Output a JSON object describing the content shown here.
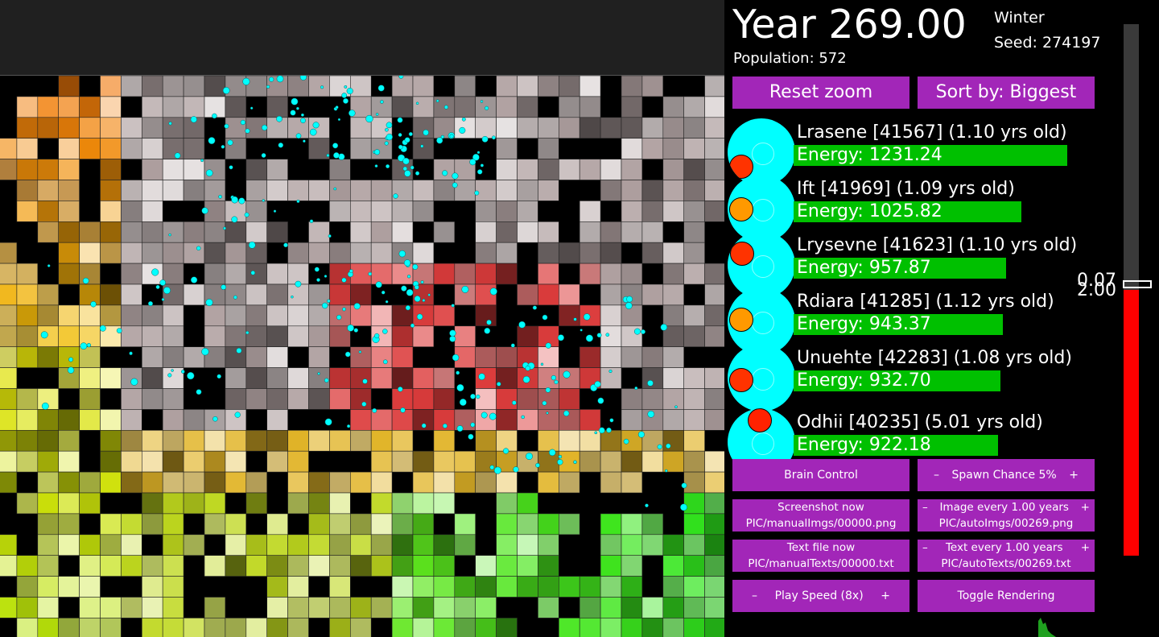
{
  "header": {
    "year_text": "Year 269.00",
    "population_text": "Population: 572",
    "season_text": "Winter",
    "seed_text": "Seed: 274197"
  },
  "buttons": {
    "reset_zoom": "Reset zoom",
    "sort_by": "Sort by: Biggest",
    "brain_control": "Brain Control",
    "spawn_chance": {
      "minus": "–",
      "label": "Spawn Chance 5%",
      "plus": "+"
    },
    "screenshot": {
      "line1": "Screenshot now",
      "line2": "PIC/manualImgs/00000.png"
    },
    "image_every": {
      "minus": "–",
      "label": "Image every 1.00 years",
      "plus": "+",
      "line2": "PIC/autoImgs/00269.png"
    },
    "text_file": {
      "line1": "Text file now",
      "line2": "PIC/manualTexts/00000.txt"
    },
    "text_every": {
      "minus": "–",
      "label": "Text every 1.00 years",
      "plus": "+",
      "line2": "PIC/autoTexts/00269.txt"
    },
    "play_speed": {
      "minus": "–",
      "label": "Play Speed (8x)",
      "plus": "+"
    },
    "toggle_rendering": "Toggle Rendering"
  },
  "creatures": [
    {
      "name": "Lrasene [41567] (1.10 yrs old)",
      "energy": "Energy: 1231.24",
      "energy_value": 1231.24,
      "mouth_color": "#ff3300"
    },
    {
      "name": "Ift [41969] (1.09 yrs old)",
      "energy": "Energy: 1025.82",
      "energy_value": 1025.82,
      "mouth_color": "#ff9900"
    },
    {
      "name": "Lrysevne [41623] (1.10 yrs old)",
      "energy": "Energy: 957.87",
      "energy_value": 957.87,
      "mouth_color": "#ff3300"
    },
    {
      "name": "Rdiara [41285] (1.12 yrs old)",
      "energy": "Energy: 943.37",
      "energy_value": 943.37,
      "mouth_color": "#ff9900"
    },
    {
      "name": "Unuehte [42283] (1.08 yrs old)",
      "energy": "Energy: 932.70",
      "energy_value": 932.7,
      "mouth_color": "#ff3300"
    },
    {
      "name": "Odhii [40235] (5.01 yrs old)",
      "energy": "Energy: 922.18",
      "energy_value": 922.18,
      "mouth_color": "#ff2200"
    }
  ],
  "temperature": {
    "label_a": "0.07",
    "label_b": "2.00",
    "fill_fraction": 0.5,
    "track_color": "#3a3a3a",
    "fill_color": "#ff0000"
  },
  "colors": {
    "button": "#a226b8",
    "energy_bar": "#00c000",
    "creature_body": "#00ffff"
  }
}
